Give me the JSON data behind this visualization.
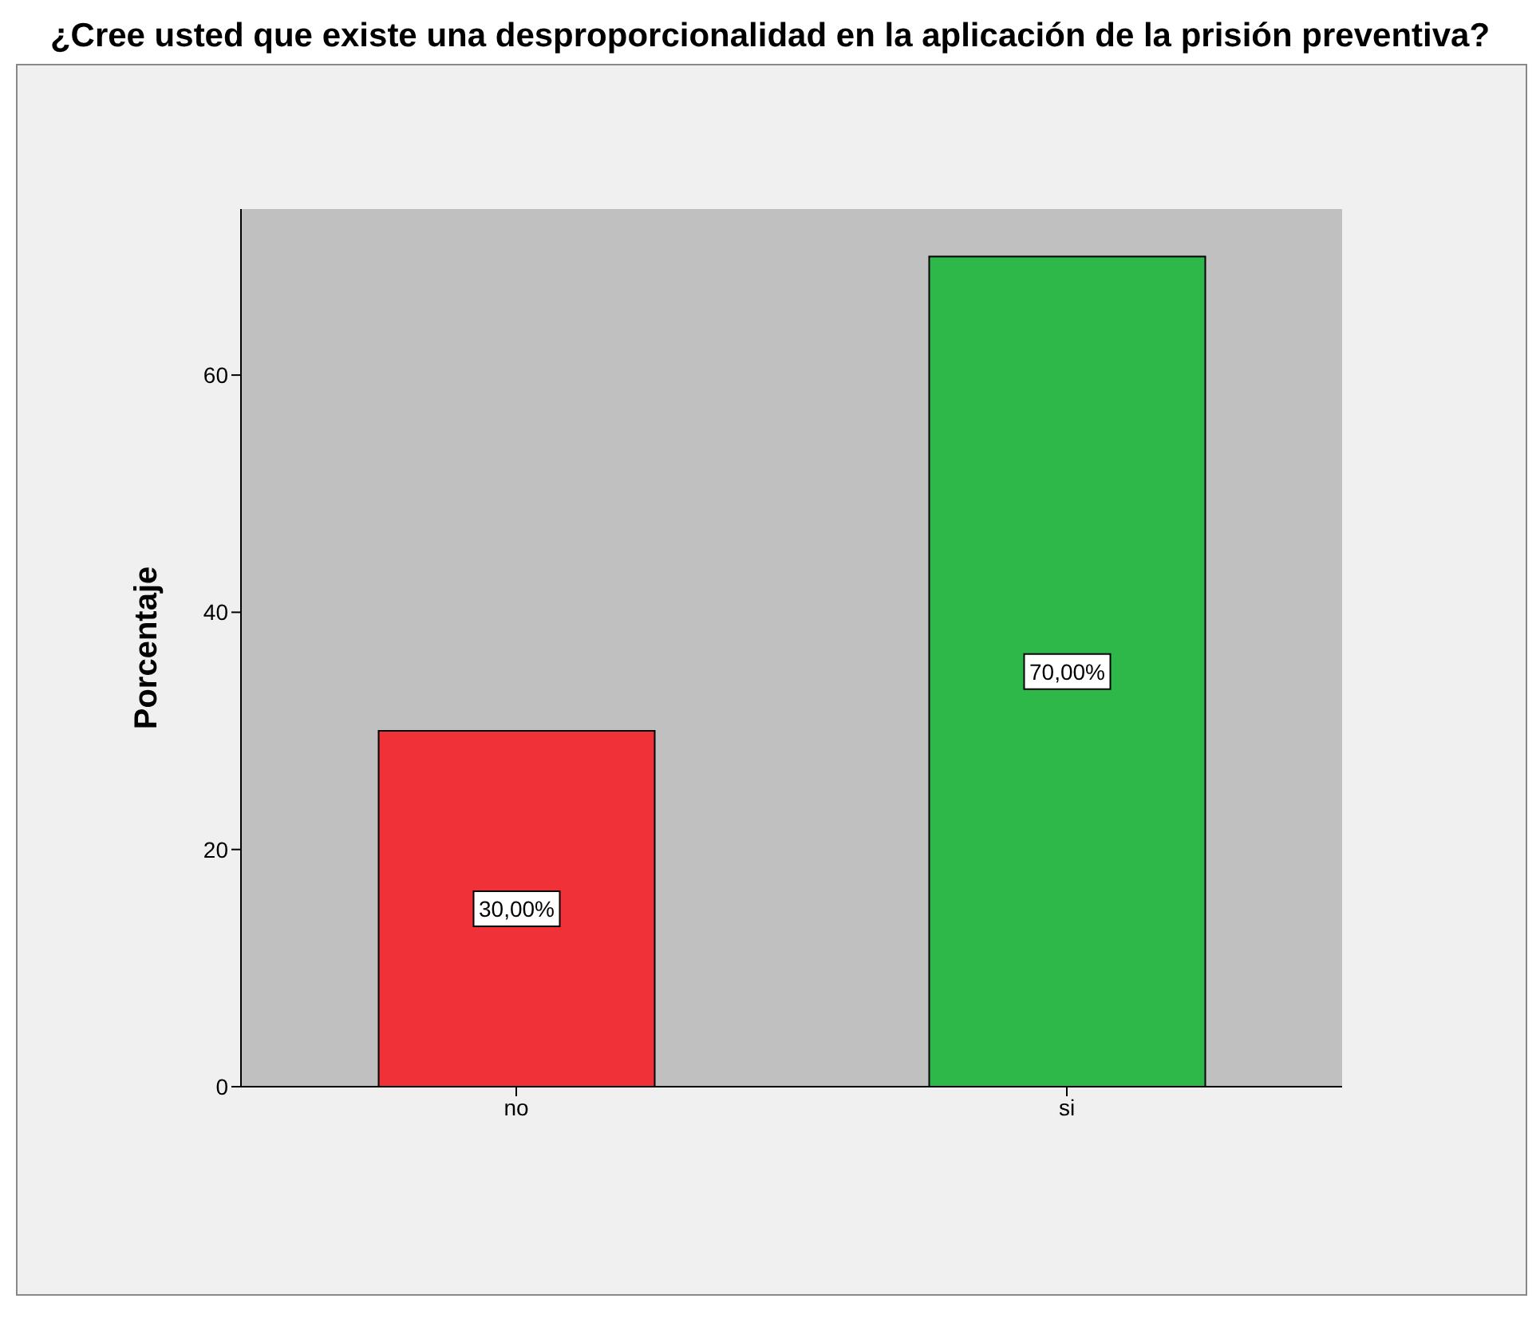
{
  "chart_data": {
    "type": "bar",
    "title": "¿Cree usted que existe una desproporcionalidad en la aplicación de la prisión preventiva?",
    "ylabel": "Porcentaje",
    "categories": [
      "no",
      "si"
    ],
    "values": [
      30,
      70
    ],
    "colors": [
      "#f03238",
      "#2fb84a"
    ],
    "value_labels": [
      "30,00%",
      "70,00%"
    ],
    "ylim": [
      0,
      74
    ],
    "yticks": [
      0,
      20,
      40,
      60
    ],
    "grid": false
  }
}
